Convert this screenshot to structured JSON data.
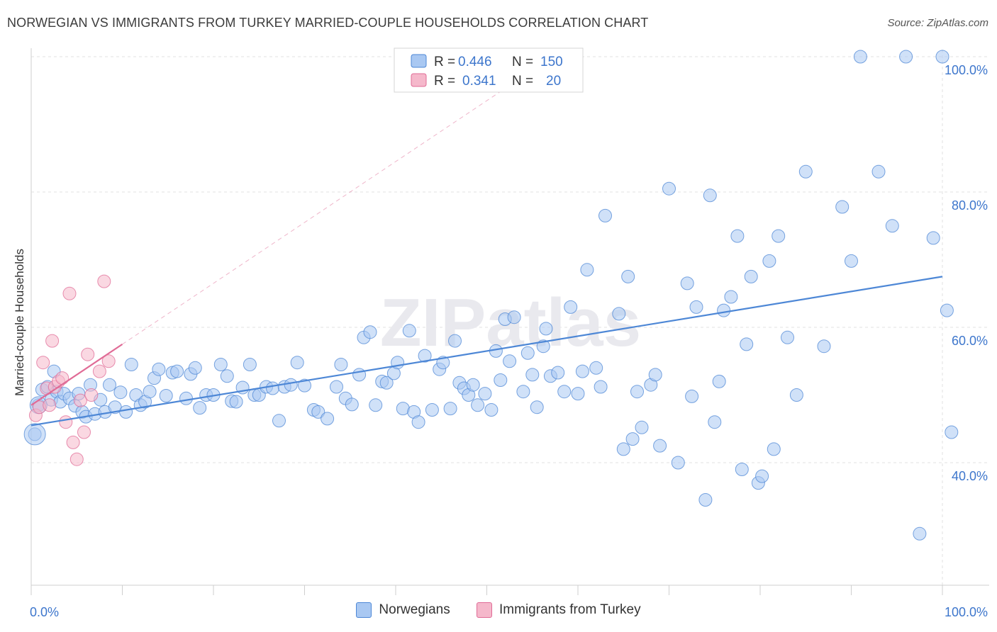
{
  "title": "NORWEGIAN VS IMMIGRANTS FROM TURKEY MARRIED-COUPLE HOUSEHOLDS CORRELATION CHART",
  "source": "Source: ZipAtlas.com",
  "watermark": "ZIPatlas",
  "colors": {
    "blue": "#4d87d6",
    "blue_fill": "#a9c8f2",
    "pink": "#e06b96",
    "pink_fill": "#f5b8cb",
    "value_text": "#3d76cc"
  },
  "chart_data": {
    "type": "scatter",
    "xlabel": "",
    "ylabel": "Married-couple Households",
    "xlim": [
      0,
      100
    ],
    "ylim": [
      20,
      102
    ],
    "x_ticks": [
      0,
      100
    ],
    "x_tick_labels": [
      "0.0%",
      "100.0%"
    ],
    "y_ticks": [
      40,
      60,
      80,
      100
    ],
    "y_tick_labels": [
      "40.0%",
      "60.0%",
      "80.0%",
      "100.0%"
    ],
    "grid": true,
    "legend": {
      "placement": "top-center",
      "entries": [
        {
          "r_label": "R =",
          "r": "0.446",
          "n_label": "N =",
          "n": "150"
        },
        {
          "r_label": "R =",
          "r": "0.341",
          "n_label": "N =",
          "n": "20"
        }
      ]
    },
    "series": [
      {
        "name": "Norwegians",
        "color": "#4d87d6",
        "trend": {
          "x0": 0,
          "y0": 45.5,
          "x1": 100,
          "y1": 67.5
        },
        "points": [
          [
            0.4,
            44.2
          ],
          [
            0.8,
            48.5
          ],
          [
            1.2,
            50.8
          ],
          [
            1.8,
            51.2
          ],
          [
            2.2,
            49.3
          ],
          [
            2.5,
            53.5
          ],
          [
            2.8,
            50.5
          ],
          [
            3.2,
            49.0
          ],
          [
            3.6,
            50.2
          ],
          [
            4.2,
            49.5
          ],
          [
            4.8,
            48.4
          ],
          [
            5.2,
            50.2
          ],
          [
            5.6,
            47.5
          ],
          [
            6.0,
            46.8
          ],
          [
            6.5,
            51.5
          ],
          [
            7.0,
            47.2
          ],
          [
            7.6,
            49.3
          ],
          [
            8.1,
            47.5
          ],
          [
            8.6,
            51.5
          ],
          [
            9.2,
            48.2
          ],
          [
            9.8,
            50.4
          ],
          [
            10.4,
            47.5
          ],
          [
            11.0,
            54.5
          ],
          [
            11.5,
            50.0
          ],
          [
            12.0,
            48.5
          ],
          [
            12.5,
            49.0
          ],
          [
            13.0,
            50.5
          ],
          [
            13.5,
            52.5
          ],
          [
            14.0,
            53.8
          ],
          [
            14.8,
            49.9
          ],
          [
            15.5,
            53.3
          ],
          [
            16.0,
            53.5
          ],
          [
            17.0,
            49.5
          ],
          [
            17.5,
            53.1
          ],
          [
            18.0,
            54.0
          ],
          [
            18.5,
            48.1
          ],
          [
            19.2,
            50.0
          ],
          [
            20.0,
            50.0
          ],
          [
            20.8,
            54.5
          ],
          [
            21.5,
            52.8
          ],
          [
            22.0,
            49.1
          ],
          [
            22.5,
            49.0
          ],
          [
            23.2,
            51.1
          ],
          [
            24.0,
            54.5
          ],
          [
            24.5,
            50.0
          ],
          [
            25.0,
            50.0
          ],
          [
            25.8,
            51.2
          ],
          [
            26.5,
            51.0
          ],
          [
            27.2,
            46.2
          ],
          [
            27.8,
            51.2
          ],
          [
            28.5,
            51.5
          ],
          [
            29.2,
            54.8
          ],
          [
            30.0,
            51.4
          ],
          [
            31.0,
            47.8
          ],
          [
            31.5,
            47.5
          ],
          [
            32.5,
            46.5
          ],
          [
            33.5,
            51.2
          ],
          [
            34.0,
            54.5
          ],
          [
            34.5,
            49.5
          ],
          [
            35.2,
            48.6
          ],
          [
            36.0,
            53.0
          ],
          [
            36.5,
            58.5
          ],
          [
            37.2,
            59.3
          ],
          [
            37.8,
            48.5
          ],
          [
            38.5,
            52.0
          ],
          [
            39.0,
            51.8
          ],
          [
            39.8,
            53.2
          ],
          [
            40.2,
            54.8
          ],
          [
            40.8,
            48.0
          ],
          [
            41.5,
            59.5
          ],
          [
            42.0,
            47.5
          ],
          [
            42.5,
            46.0
          ],
          [
            43.2,
            55.8
          ],
          [
            44.0,
            47.8
          ],
          [
            44.8,
            53.8
          ],
          [
            45.2,
            54.8
          ],
          [
            46.0,
            48.0
          ],
          [
            46.5,
            58.0
          ],
          [
            47.0,
            51.8
          ],
          [
            47.5,
            51.0
          ],
          [
            48.0,
            50.0
          ],
          [
            48.5,
            51.5
          ],
          [
            49.0,
            48.5
          ],
          [
            49.8,
            50.2
          ],
          [
            50.5,
            47.8
          ],
          [
            51.0,
            56.5
          ],
          [
            51.5,
            52.2
          ],
          [
            52.0,
            61.2
          ],
          [
            52.5,
            55.0
          ],
          [
            53.0,
            61.5
          ],
          [
            54.0,
            50.5
          ],
          [
            54.5,
            56.2
          ],
          [
            55.0,
            53.0
          ],
          [
            55.5,
            48.2
          ],
          [
            56.2,
            57.2
          ],
          [
            56.5,
            59.8
          ],
          [
            57.0,
            52.8
          ],
          [
            57.8,
            53.3
          ],
          [
            58.5,
            50.5
          ],
          [
            59.2,
            63.0
          ],
          [
            60.0,
            50.2
          ],
          [
            60.5,
            53.5
          ],
          [
            61.0,
            68.5
          ],
          [
            62.0,
            54.0
          ],
          [
            62.5,
            51.2
          ],
          [
            63.0,
            76.5
          ],
          [
            64.5,
            62.0
          ],
          [
            65.0,
            42.0
          ],
          [
            65.5,
            67.5
          ],
          [
            66.0,
            43.5
          ],
          [
            66.5,
            50.5
          ],
          [
            67.0,
            45.2
          ],
          [
            68.0,
            51.5
          ],
          [
            68.5,
            53.0
          ],
          [
            69.0,
            42.5
          ],
          [
            70.0,
            80.5
          ],
          [
            71.0,
            40.0
          ],
          [
            72.0,
            66.5
          ],
          [
            72.5,
            49.8
          ],
          [
            73.0,
            63.0
          ],
          [
            74.0,
            34.5
          ],
          [
            74.5,
            79.5
          ],
          [
            75.0,
            46.0
          ],
          [
            75.5,
            52.0
          ],
          [
            76.0,
            62.5
          ],
          [
            76.8,
            64.5
          ],
          [
            77.5,
            73.5
          ],
          [
            78.0,
            39.0
          ],
          [
            78.5,
            57.5
          ],
          [
            79.0,
            67.5
          ],
          [
            79.8,
            37.0
          ],
          [
            80.2,
            38.0
          ],
          [
            81.0,
            69.8
          ],
          [
            81.5,
            42.0
          ],
          [
            82.0,
            73.5
          ],
          [
            83.0,
            58.5
          ],
          [
            84.0,
            50.0
          ],
          [
            85.0,
            83.0
          ],
          [
            87.0,
            57.2
          ],
          [
            89.0,
            77.8
          ],
          [
            90.0,
            69.8
          ],
          [
            91.0,
            100.0
          ],
          [
            93.0,
            83.0
          ],
          [
            94.5,
            75.0
          ],
          [
            96.0,
            100.0
          ],
          [
            97.5,
            29.5
          ],
          [
            99.0,
            73.2
          ],
          [
            100.0,
            100.0
          ],
          [
            100.5,
            62.5
          ],
          [
            101.0,
            44.5
          ]
        ]
      },
      {
        "name": "Immigrants from Turkey",
        "color": "#e06b96",
        "trend": {
          "x0": 0,
          "y0": 48.5,
          "x1": 10,
          "y1": 57.5
        },
        "points": [
          [
            0.5,
            47.0
          ],
          [
            0.9,
            48.2
          ],
          [
            1.3,
            54.8
          ],
          [
            1.7,
            51.0
          ],
          [
            2.0,
            48.5
          ],
          [
            2.3,
            58.0
          ],
          [
            2.6,
            51.2
          ],
          [
            3.0,
            52.0
          ],
          [
            3.4,
            52.5
          ],
          [
            3.8,
            46.0
          ],
          [
            4.2,
            65.0
          ],
          [
            4.6,
            43.0
          ],
          [
            5.0,
            40.5
          ],
          [
            5.4,
            49.2
          ],
          [
            5.8,
            44.5
          ],
          [
            6.2,
            56.0
          ],
          [
            6.6,
            50.0
          ],
          [
            7.5,
            53.5
          ],
          [
            8.0,
            66.8
          ],
          [
            8.5,
            55.0
          ]
        ]
      }
    ]
  }
}
